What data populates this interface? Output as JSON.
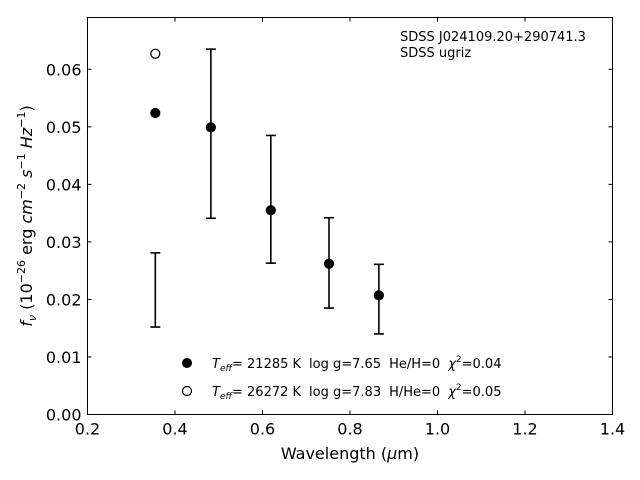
{
  "chart_data": {
    "type": "scatter",
    "xlabel_pre": "Wavelength (",
    "xlabel_mu": "μ",
    "xlabel_post": "m)",
    "ylabel_f": "f",
    "ylabel_nu": "ν",
    "ylabel_unit_pre": " (10",
    "ylabel_exp1": "−26",
    "ylabel_erg": " erg ",
    "ylabel_cm": "cm",
    "ylabel_exp2": "−2",
    "ylabel_s": "s",
    "ylabel_exp3": "−1",
    "ylabel_hz": "Hz",
    "ylabel_exp4": "−1",
    "ylabel_close": ")",
    "xlim": [
      0.2,
      1.4
    ],
    "ylim": [
      0.0,
      0.069
    ],
    "x_ticks": [
      0.2,
      0.4,
      0.6,
      0.8,
      1.0,
      1.2,
      1.4
    ],
    "x_tick_labels": [
      "0.2",
      "0.4",
      "0.6",
      "0.8",
      "1.0",
      "1.2",
      "1.4"
    ],
    "y_ticks": [
      0.0,
      0.01,
      0.02,
      0.03,
      0.04,
      0.05,
      0.06
    ],
    "y_tick_labels": [
      "0.00",
      "0.01",
      "0.02",
      "0.03",
      "0.04",
      "0.05",
      "0.06"
    ],
    "annotation": [
      "SDSS J024109.20+290741.3",
      "SDSS ugriz"
    ],
    "observed": [
      {
        "x": 0.355,
        "y": 0.0216,
        "yerr_low": 0.0152,
        "yerr_high": 0.0281,
        "show_point": false
      },
      {
        "x": 0.482,
        "y": 0.0499,
        "yerr_low": 0.0341,
        "yerr_high": 0.0635,
        "show_point": false
      },
      {
        "x": 0.619,
        "y": 0.0355,
        "yerr_low": 0.0263,
        "yerr_high": 0.0485,
        "show_point": false
      },
      {
        "x": 0.752,
        "y": 0.0262,
        "yerr_low": 0.0185,
        "yerr_high": 0.0342,
        "show_point": false
      },
      {
        "x": 0.866,
        "y": 0.0207,
        "yerr_low": 0.014,
        "yerr_high": 0.0261,
        "show_point": false
      }
    ],
    "series": [
      {
        "name": "filled",
        "marker": "filled-circle",
        "x": [
          0.355,
          0.482,
          0.619,
          0.752,
          0.866
        ],
        "y": [
          0.0524,
          0.0499,
          0.0355,
          0.0262,
          0.0207
        ]
      },
      {
        "name": "open",
        "marker": "open-circle",
        "x": [
          0.355
        ],
        "y": [
          0.0627
        ]
      }
    ],
    "legend": [
      {
        "marker": "filled-circle",
        "T": "T",
        "Tsub": "eff",
        "teff": "= 21285 K",
        "logg": "log g=7.65",
        "comp": "He/H=0",
        "chi": "χ",
        "chisup": "2",
        "chival": "=0.04"
      },
      {
        "marker": "open-circle",
        "T": "T",
        "Tsub": "eff",
        "teff": "= 26272 K",
        "logg": "log g=7.83",
        "comp": "H/He=0",
        "chi": "χ",
        "chisup": "2",
        "chival": "=0.05"
      }
    ],
    "legend_location": "lower-center",
    "grid": false
  }
}
